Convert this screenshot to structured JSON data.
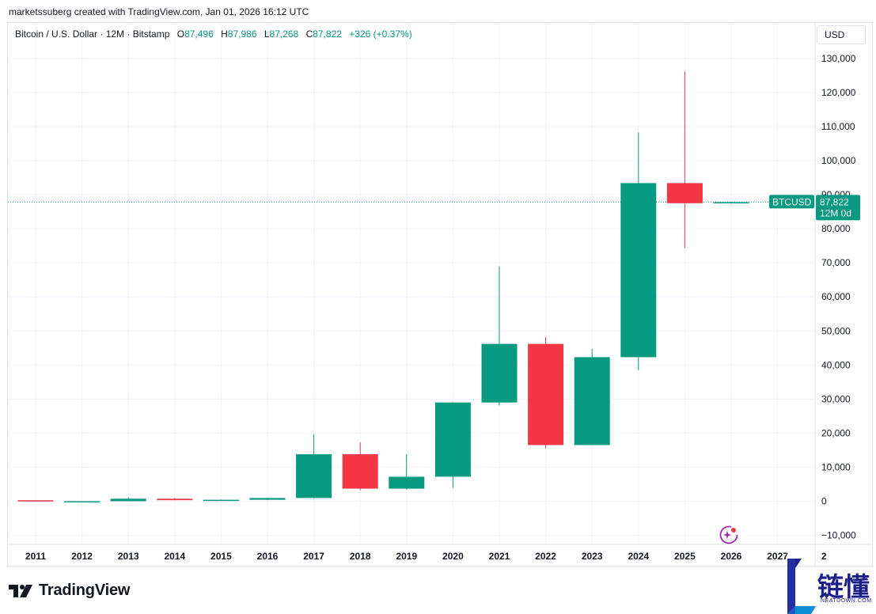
{
  "header": {
    "credit": "marketssuberg created with TradingView.com, Jan 01, 2026 16:12 UTC"
  },
  "legend": {
    "symbol": "Bitcoin / U.S. Dollar · 12M · Bitstamp",
    "o_key": "O",
    "o_val": "87,496",
    "h_key": "H",
    "h_val": "87,986",
    "l_key": "L",
    "l_val": "87,268",
    "c_key": "C",
    "c_val": "87,822",
    "change": "+326 (+0.37%)"
  },
  "currency": "USD",
  "price_tag": {
    "symbol": "BTCUSD",
    "price": "87,822",
    "countdown": "12M 0d"
  },
  "branding": {
    "logo_text": "TradingView",
    "watermark_text": "链懂",
    "watermark_sub": "NEATDOWN.COM"
  },
  "colors": {
    "up": "#089981",
    "down": "#f23645",
    "grid": "#f0f3fa",
    "text": "#131722"
  },
  "chart_data": {
    "type": "candlestick",
    "title": "Bitcoin / U.S. Dollar · 12M · Bitstamp",
    "x_tick_labels": [
      "2011",
      "2012",
      "2013",
      "2014",
      "2015",
      "2016",
      "2017",
      "2018",
      "2019",
      "2020",
      "2021",
      "2022",
      "2023",
      "2024",
      "2025",
      "2026",
      "2027",
      "2"
    ],
    "y_tick_labels": [
      "130,000",
      "120,000",
      "110,000",
      "100,000",
      "90,000",
      "80,000",
      "70,000",
      "60,000",
      "50,000",
      "40,000",
      "30,000",
      "20,000",
      "10,000",
      "0",
      "−10,000"
    ],
    "y_ticks": [
      130000,
      120000,
      110000,
      100000,
      90000,
      80000,
      70000,
      60000,
      50000,
      40000,
      30000,
      20000,
      10000,
      0,
      -10000
    ],
    "ylim": [
      -11000,
      132000
    ],
    "last_price": 87822,
    "candles": [
      {
        "year": "2011",
        "open": 300,
        "high": 300,
        "low": 0,
        "close": 0
      },
      {
        "year": "2012",
        "open": 5,
        "high": 15,
        "low": 4,
        "close": 13
      },
      {
        "year": "2013",
        "open": 13,
        "high": 1160,
        "low": 13,
        "close": 730
      },
      {
        "year": "2014",
        "open": 730,
        "high": 1000,
        "low": 300,
        "close": 320
      },
      {
        "year": "2015",
        "open": 320,
        "high": 500,
        "low": 180,
        "close": 430
      },
      {
        "year": "2016",
        "open": 430,
        "high": 980,
        "low": 350,
        "close": 960
      },
      {
        "year": "2017",
        "open": 960,
        "high": 19700,
        "low": 800,
        "close": 13800
      },
      {
        "year": "2018",
        "open": 13800,
        "high": 17300,
        "low": 3200,
        "close": 3700
      },
      {
        "year": "2019",
        "open": 3700,
        "high": 13800,
        "low": 3400,
        "close": 7200
      },
      {
        "year": "2020",
        "open": 7200,
        "high": 29000,
        "low": 3900,
        "close": 29000
      },
      {
        "year": "2021",
        "open": 29000,
        "high": 69000,
        "low": 28100,
        "close": 46200
      },
      {
        "year": "2022",
        "open": 46200,
        "high": 48200,
        "low": 15500,
        "close": 16500
      },
      {
        "year": "2023",
        "open": 16500,
        "high": 44700,
        "low": 16500,
        "close": 42300
      },
      {
        "year": "2024",
        "open": 42300,
        "high": 108300,
        "low": 38500,
        "close": 93400
      },
      {
        "year": "2025",
        "open": 93400,
        "high": 126200,
        "low": 74400,
        "close": 87500
      },
      {
        "year": "2026",
        "open": 87496,
        "high": 87986,
        "low": 87268,
        "close": 87822
      }
    ]
  }
}
